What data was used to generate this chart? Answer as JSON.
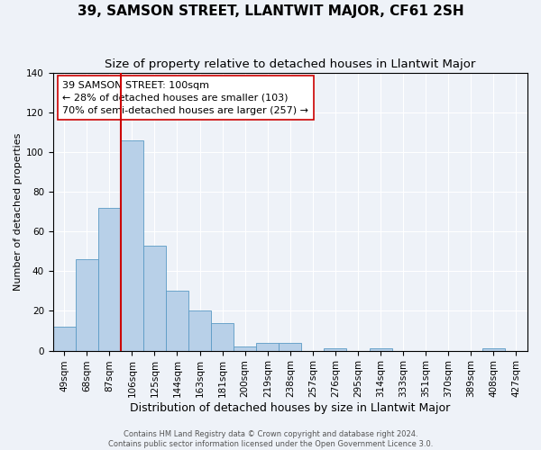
{
  "title": "39, SAMSON STREET, LLANTWIT MAJOR, CF61 2SH",
  "subtitle": "Size of property relative to detached houses in Llantwit Major",
  "xlabel": "Distribution of detached houses by size in Llantwit Major",
  "ylabel": "Number of detached properties",
  "footer_line1": "Contains HM Land Registry data © Crown copyright and database right 2024.",
  "footer_line2": "Contains public sector information licensed under the Open Government Licence 3.0.",
  "bin_labels": [
    "49sqm",
    "68sqm",
    "87sqm",
    "106sqm",
    "125sqm",
    "144sqm",
    "163sqm",
    "181sqm",
    "200sqm",
    "219sqm",
    "238sqm",
    "257sqm",
    "276sqm",
    "295sqm",
    "314sqm",
    "333sqm",
    "351sqm",
    "370sqm",
    "389sqm",
    "408sqm",
    "427sqm"
  ],
  "bar_values": [
    12,
    46,
    72,
    106,
    53,
    30,
    20,
    14,
    2,
    4,
    4,
    0,
    1,
    0,
    1,
    0,
    0,
    0,
    0,
    1,
    0
  ],
  "bar_color": "#b8d0e8",
  "bar_edge_color": "#5a9ac5",
  "vline_color": "#cc0000",
  "annotation_text": "39 SAMSON STREET: 100sqm\n← 28% of detached houses are smaller (103)\n70% of semi-detached houses are larger (257) →",
  "annotation_box_color": "#ffffff",
  "annotation_box_edge": "#cc0000",
  "ylim": [
    0,
    140
  ],
  "yticks": [
    0,
    20,
    40,
    60,
    80,
    100,
    120,
    140
  ],
  "background_color": "#eef2f8",
  "plot_background": "#eef2f8",
  "grid_color": "#ffffff",
  "title_fontsize": 11,
  "subtitle_fontsize": 9.5,
  "xlabel_fontsize": 9,
  "ylabel_fontsize": 8,
  "tick_fontsize": 7.5,
  "annotation_fontsize": 8,
  "footer_fontsize": 6
}
